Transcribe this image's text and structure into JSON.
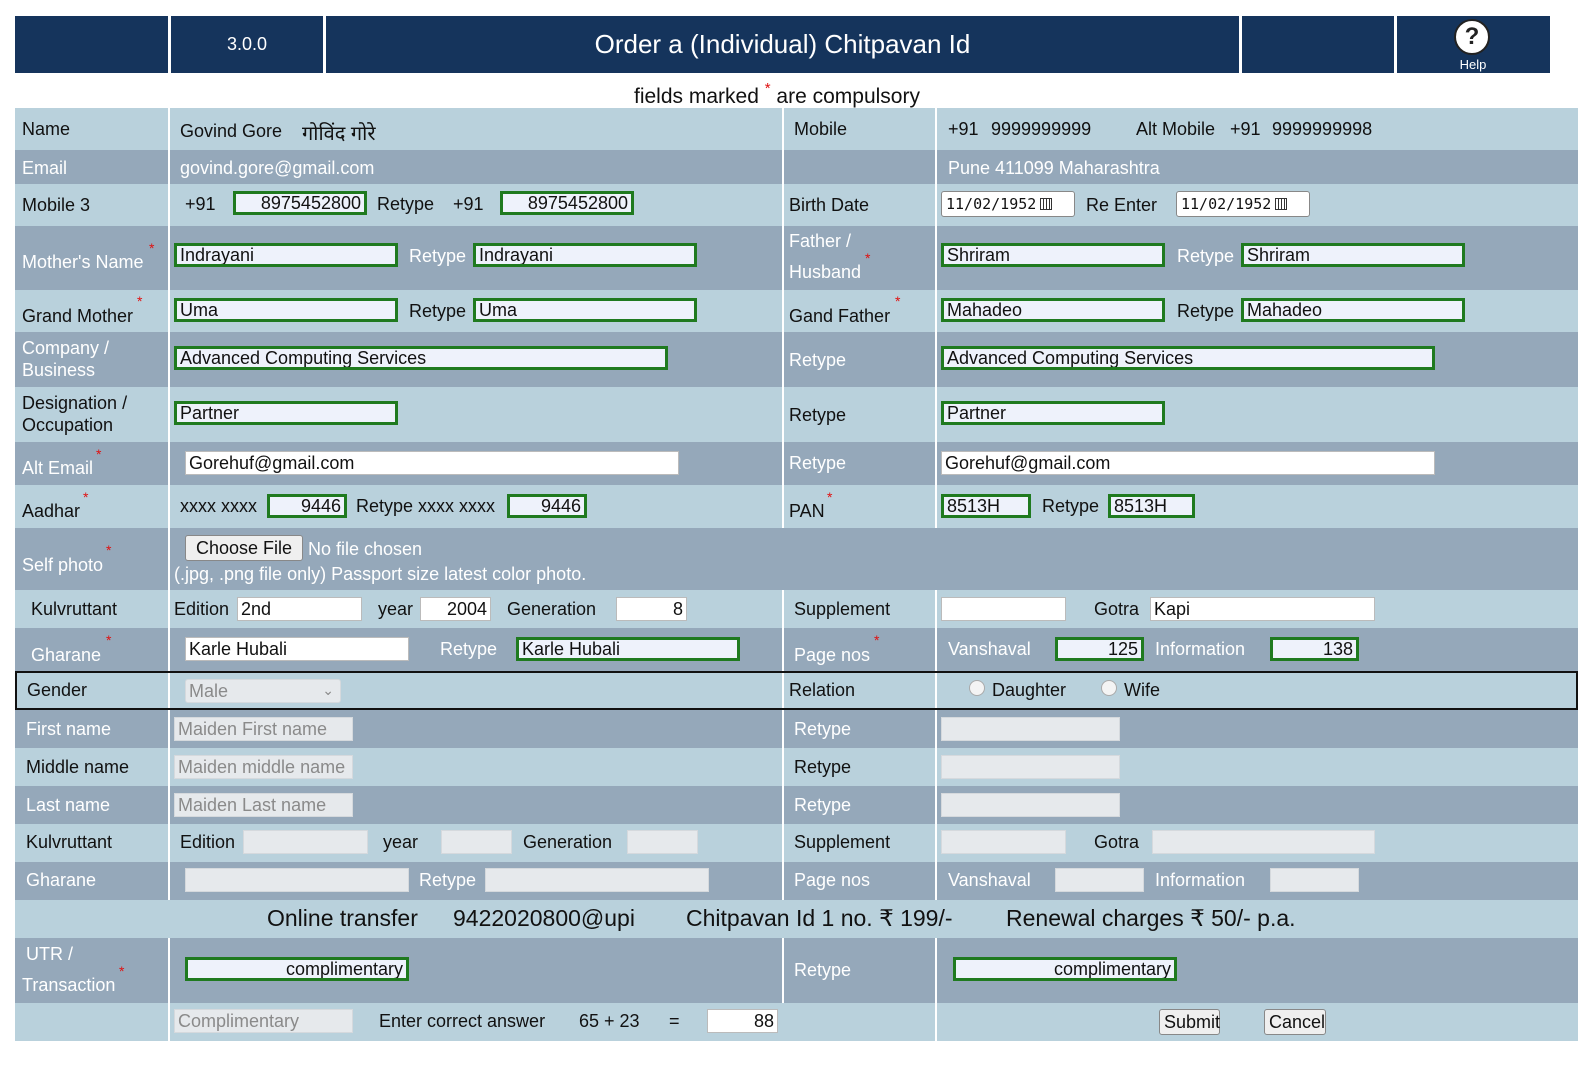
{
  "header": {
    "version": "3.0.0",
    "title": "Order a (Individual) Chitpavan Id",
    "help_label": "Help"
  },
  "note": {
    "before": "fields marked",
    "star": "*",
    "after": "are compulsory"
  },
  "star": "*",
  "r_name": {
    "label": "Name",
    "value_en": "Govind Gore",
    "value_mr": "गोविंद गोरे",
    "mobile_label": "Mobile",
    "mobile_code": "+91",
    "mobile": "9999999999",
    "alt_mobile_label": "Alt Mobile",
    "alt_mobile_code": "+91",
    "alt_mobile": "9999999998"
  },
  "r_email": {
    "label": "Email",
    "value": "govind.gore@gmail.com",
    "address": "Pune 411099 Maharashtra"
  },
  "r_mobile3": {
    "label": "Mobile 3",
    "code": "+91",
    "value": "8975452800",
    "retype_label": "Retype",
    "retype_code": "+91",
    "retype_value": "8975452800",
    "birth_label": "Birth Date",
    "birth_value": "11/02/1952",
    "reenter_label": "Re Enter",
    "reenter_value": "11/02/1952"
  },
  "r_mother": {
    "label": "Mother's Name",
    "value": "Indrayani",
    "retype_label": "Retype",
    "retype_value": "Indrayani",
    "father_label_1": "Father /",
    "father_label_2": "Husband",
    "father_value": "Shriram",
    "father_retype_label": "Retype",
    "father_retype_value": "Shriram"
  },
  "r_grand": {
    "label": "Grand Mother",
    "value": "Uma",
    "retype_label": "Retype",
    "retype_value": "Uma",
    "gf_label": "Gand Father",
    "gf_value": "Mahadeo",
    "gf_retype_label": "Retype",
    "gf_retype_value": "Mahadeo"
  },
  "r_company": {
    "label_1": "Company /",
    "label_2": "Business",
    "value": "Advanced Computing Services",
    "retype_label": "Retype",
    "retype_value": "Advanced Computing Services"
  },
  "r_designation": {
    "label_1": "Designation /",
    "label_2": "Occupation",
    "value": "Partner",
    "retype_label": "Retype",
    "retype_value": "Partner"
  },
  "r_altemail": {
    "label": "Alt Email",
    "value": "Gorehuf@gmail.com",
    "retype_label": "Retype",
    "retype_value": "Gorehuf@gmail.com"
  },
  "r_aadhar": {
    "label": "Aadhar",
    "mask": "xxxx xxxx",
    "value": "9446",
    "retype_label": "Retype xxxx xxxx",
    "retype_value": "9446",
    "pan_label": "PAN",
    "pan_value": "8513H",
    "pan_retype_label": "Retype",
    "pan_retype_value": "8513H"
  },
  "r_photo": {
    "label": "Self photo",
    "button": "Choose File",
    "status": "No file chosen",
    "hint": "(.jpg, .png file only) Passport size latest color photo."
  },
  "r_kul1": {
    "label": "Kulvruttant",
    "edition_label": "Edition",
    "edition": "2nd",
    "year_label": "year",
    "year": "2004",
    "generation_label": "Generation",
    "generation": "8",
    "supplement_label": "Supplement",
    "supplement": "",
    "gotra_label": "Gotra",
    "gotra": "Kapi"
  },
  "r_gharane1": {
    "label": "Gharane",
    "value": "Karle Hubali",
    "retype_label": "Retype",
    "retype_value": "Karle Hubali",
    "page_label": "Page nos",
    "vanshaval_label": "Vanshaval",
    "vanshaval": "125",
    "information_label": "Information",
    "information": "138"
  },
  "r_gender": {
    "label": "Gender",
    "value": "Male",
    "relation_label": "Relation",
    "options": [
      "Daughter",
      "Wife"
    ]
  },
  "r_first": {
    "label": "First name",
    "placeholder": "Maiden First name",
    "retype_label": "Retype"
  },
  "r_middle": {
    "label": "Middle name",
    "placeholder": "Maiden middle name",
    "retype_label": "Retype"
  },
  "r_last": {
    "label": "Last name",
    "placeholder": "Maiden Last name",
    "retype_label": "Retype"
  },
  "r_kul2": {
    "label": "Kulvruttant",
    "edition_label": "Edition",
    "year_label": "year",
    "generation_label": "Generation",
    "supplement_label": "Supplement",
    "gotra_label": "Gotra"
  },
  "r_gharane2": {
    "label": "Gharane",
    "retype_label": "Retype",
    "page_label": "Page nos",
    "vanshaval_label": "Vanshaval",
    "information_label": "Information"
  },
  "r_payment": {
    "online": "Online transfer",
    "upi": "9422020800@upi",
    "price": "Chitpavan Id 1 no. ₹ 199/-",
    "renewal": "Renewal charges ₹ 50/- p.a."
  },
  "r_utr": {
    "label_1": "UTR /",
    "label_2": "Transaction",
    "value": "complimentary",
    "retype_label": "Retype",
    "retype_value": "complimentary"
  },
  "r_captcha": {
    "field_value": "Complimentary",
    "prompt": "Enter correct answer",
    "question": "65 + 23",
    "equals": "=",
    "answer": "88",
    "submit": "Submit",
    "cancel": "Cancel"
  },
  "colors": {
    "header": "#15345c",
    "light_row": "#b9d1dc",
    "dark_row": "#95a8ba",
    "valid_border": "#1f7a1f",
    "required_star": "#e01010"
  }
}
